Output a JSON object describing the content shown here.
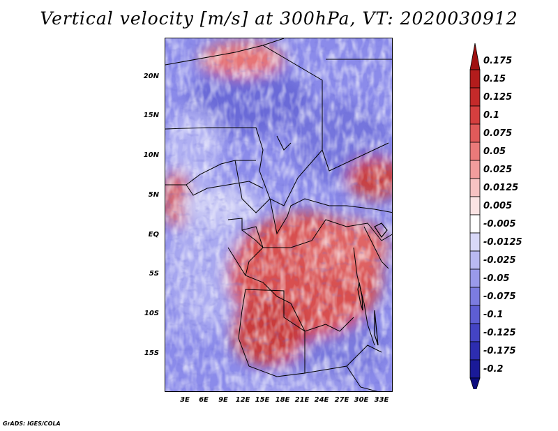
{
  "title": "Vertical velocity [m/s] at 300hPa, VT: 2020030912",
  "credit": "GrADS: IGES/COLA",
  "map": {
    "variable": "Vertical velocity",
    "units": "m/s",
    "level": "300hPa",
    "valid_time": "2020030912",
    "lat_range": [
      -20,
      25
    ],
    "lon_range": [
      0,
      35
    ],
    "lat_labels": [
      "20N",
      "15N",
      "10N",
      "5N",
      "EQ",
      "5S",
      "10S",
      "15S"
    ],
    "lon_labels": [
      "3E",
      "6E",
      "9E",
      "12E",
      "15E",
      "18E",
      "21E",
      "24E",
      "27E",
      "30E",
      "33E"
    ]
  },
  "legend": {
    "labels": [
      "0.175",
      "0.15",
      "0.125",
      "0.1",
      "0.075",
      "0.05",
      "0.025",
      "0.0125",
      "0.005",
      "-0.005",
      "-0.0125",
      "-0.025",
      "-0.05",
      "-0.075",
      "-0.1",
      "-0.125",
      "-0.175",
      "-0.2"
    ],
    "colors": [
      "#a01010",
      "#b31c1c",
      "#c42a2a",
      "#d53f3f",
      "#e05a5a",
      "#ea7a7a",
      "#f29d9d",
      "#f7c2c2",
      "#fbe3e3",
      "#ffffff",
      "#d8d8f8",
      "#b9b9f2",
      "#9a9aea",
      "#7c7ce0",
      "#5e5ed4",
      "#4444c4",
      "#2d2db0",
      "#1a1a98",
      "#0c0c80"
    ]
  }
}
